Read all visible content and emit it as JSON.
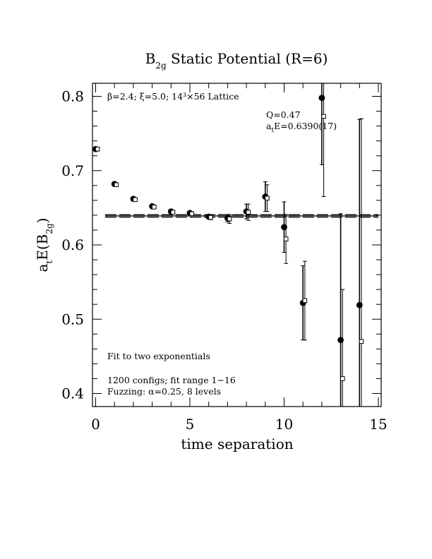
{
  "chart_data": {
    "type": "scatter",
    "title": {
      "main": "B",
      "sub": "2g",
      "rest": " Static Potential (R=6)"
    },
    "xlabel": "time separation",
    "ylabel": {
      "a": "a",
      "t": "t",
      "e": "E(B",
      "sub": "2g",
      "close": ")"
    },
    "xlim": [
      0,
      15
    ],
    "ylim": [
      0.38,
      0.82
    ],
    "xticks": [
      0,
      5,
      10,
      15
    ],
    "xtick_labels": [
      "0",
      "5",
      "10",
      "15"
    ],
    "yticks": [
      0.4,
      0.5,
      0.6,
      0.7,
      0.8
    ],
    "ytick_labels": [
      "0.4",
      "0.5",
      "0.6",
      "0.7",
      "0.8"
    ],
    "grid": false,
    "series": [
      {
        "marker": "filled-circle",
        "points": [
          {
            "x": 0,
            "y": 0.729,
            "err": 0.002
          },
          {
            "x": 1,
            "y": 0.682,
            "err": 0.002
          },
          {
            "x": 2,
            "y": 0.662,
            "err": 0.002
          },
          {
            "x": 3,
            "y": 0.652,
            "err": 0.002
          },
          {
            "x": 4,
            "y": 0.645,
            "err": 0.002
          },
          {
            "x": 5,
            "y": 0.643,
            "err": 0.002
          },
          {
            "x": 6,
            "y": 0.638,
            "err": 0.003
          },
          {
            "x": 7,
            "y": 0.636,
            "err": 0.005
          },
          {
            "x": 8,
            "y": 0.645,
            "err": 0.01
          },
          {
            "x": 9,
            "y": 0.665,
            "err": 0.02
          },
          {
            "x": 10,
            "y": 0.624,
            "err": 0.034
          },
          {
            "x": 11,
            "y": 0.522,
            "err": 0.05
          },
          {
            "x": 12,
            "y": 0.798,
            "err": 0.09
          },
          {
            "x": 13,
            "y": 0.472,
            "err": 0.17
          },
          {
            "x": 14,
            "y": 0.519,
            "err": 0.25
          }
        ]
      },
      {
        "marker": "open-square",
        "points": [
          {
            "x": 0.1,
            "y": 0.729,
            "err": 0.002
          },
          {
            "x": 1.1,
            "y": 0.681,
            "err": 0.002
          },
          {
            "x": 2.1,
            "y": 0.661,
            "err": 0.002
          },
          {
            "x": 3.1,
            "y": 0.651,
            "err": 0.002
          },
          {
            "x": 4.1,
            "y": 0.644,
            "err": 0.002
          },
          {
            "x": 5.1,
            "y": 0.642,
            "err": 0.002
          },
          {
            "x": 6.1,
            "y": 0.637,
            "err": 0.003
          },
          {
            "x": 7.1,
            "y": 0.635,
            "err": 0.006
          },
          {
            "x": 8.1,
            "y": 0.644,
            "err": 0.011
          },
          {
            "x": 9.1,
            "y": 0.663,
            "err": 0.018
          },
          {
            "x": 10.1,
            "y": 0.608,
            "err": 0.033
          },
          {
            "x": 11.1,
            "y": 0.525,
            "err": 0.053
          },
          {
            "x": 12.1,
            "y": 0.773,
            "err": 0.108
          },
          {
            "x": 13.1,
            "y": 0.42,
            "err": 0.12
          },
          {
            "x": 14.1,
            "y": 0.47,
            "err": 0.3
          }
        ]
      }
    ],
    "fit": {
      "value": 0.639,
      "error": 0.0017,
      "x_from": 0.5,
      "x_to": 15
    },
    "annotations": {
      "lattice": "β=2.4; ξ=5.0; 14³×56 Lattice",
      "q": "Q=0.47",
      "fit_a": "a",
      "fit_t": "t",
      "fit_e": "E=0.6390(17)",
      "method": "Fit to two exponentials",
      "configs": "1200 configs; fit range 1−16",
      "fuzzing": "Fuzzing: α=0.25, 8 levels"
    }
  }
}
